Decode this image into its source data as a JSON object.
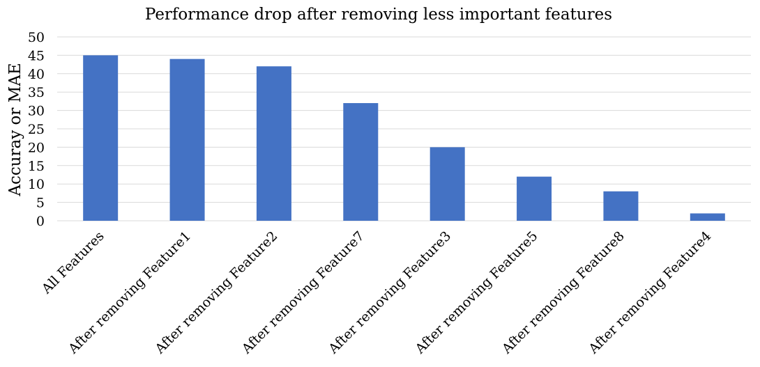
{
  "chart_data": {
    "type": "bar",
    "title": "Performance drop after removing less important features",
    "xlabel": "",
    "ylabel": "Accuray or MAE",
    "categories": [
      "All Features",
      "After removing Feature1",
      "After removing Feature2",
      "After removing Feature7",
      "After removing Feature3",
      "After removing Feature5",
      "After removing Feature8",
      "After removing Feature4"
    ],
    "values": [
      45,
      44,
      42,
      32,
      20,
      12,
      8,
      2
    ],
    "ylim": [
      0,
      50
    ],
    "yticks": [
      0,
      5,
      10,
      15,
      20,
      25,
      30,
      35,
      40,
      45,
      50
    ],
    "grid": true,
    "legend": "none",
    "bar_color": "#4472c4"
  }
}
